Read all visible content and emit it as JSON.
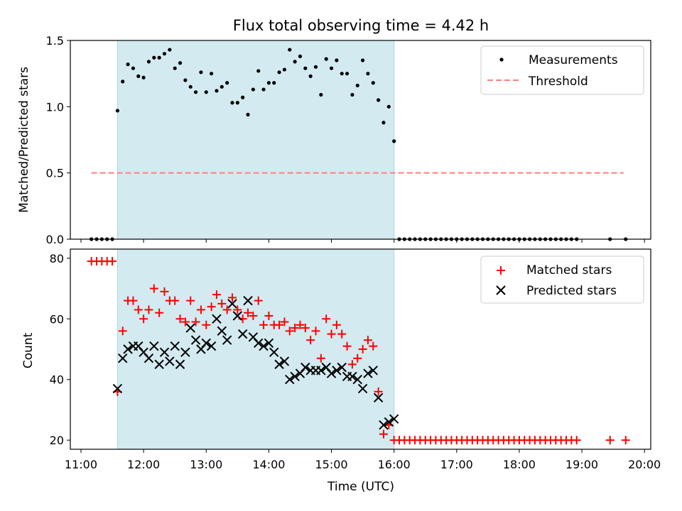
{
  "chart_data": [
    {
      "type": "scatter",
      "title": "Flux total observing time = 4.42 h",
      "ylabel": "Matched/Predicted stars",
      "xlim_hours": [
        10.83,
        20.1
      ],
      "ylim": [
        0,
        1.5
      ],
      "yticks": [
        "0.0",
        "0.5",
        "1.0",
        "1.5"
      ],
      "shaded_interval": [
        "11:35",
        "16:00"
      ],
      "shade_color": "#d3eaf0",
      "legend": {
        "placement": "top-right",
        "entries": [
          "Measurements",
          "Threshold"
        ]
      },
      "threshold": {
        "name": "Threshold",
        "value": 0.5,
        "x_range": [
          "11:10",
          "19:40"
        ],
        "color": "#ff7f7f",
        "style": "dashed"
      },
      "series": [
        {
          "name": "Measurements",
          "marker": "dot",
          "color": "#000000",
          "x": [
            "11:10",
            "11:15",
            "11:20",
            "11:25",
            "11:30",
            "11:35",
            "11:40",
            "11:45",
            "11:50",
            "11:55",
            "12:00",
            "12:05",
            "12:10",
            "12:15",
            "12:20",
            "12:25",
            "12:30",
            "12:35",
            "12:40",
            "12:45",
            "12:50",
            "12:55",
            "13:00",
            "13:05",
            "13:10",
            "13:15",
            "13:20",
            "13:25",
            "13:30",
            "13:35",
            "13:40",
            "13:45",
            "13:50",
            "13:55",
            "14:00",
            "14:05",
            "14:10",
            "14:15",
            "14:20",
            "14:25",
            "14:30",
            "14:35",
            "14:40",
            "14:45",
            "14:50",
            "14:55",
            "15:00",
            "15:05",
            "15:10",
            "15:15",
            "15:20",
            "15:25",
            "15:30",
            "15:35",
            "15:40",
            "15:45",
            "15:50",
            "15:55",
            "16:00",
            "16:05",
            "16:10",
            "16:15",
            "16:20",
            "16:25",
            "16:30",
            "16:35",
            "16:40",
            "16:45",
            "16:50",
            "16:55",
            "17:00",
            "17:05",
            "17:10",
            "17:15",
            "17:20",
            "17:25",
            "17:30",
            "17:35",
            "17:40",
            "17:45",
            "17:50",
            "17:55",
            "18:00",
            "18:05",
            "18:10",
            "18:15",
            "18:20",
            "18:25",
            "18:30",
            "18:35",
            "18:40",
            "18:45",
            "18:50",
            "18:55",
            "19:27",
            "19:42"
          ],
          "y": [
            0,
            0,
            0,
            0,
            0,
            0.97,
            1.19,
            1.32,
            1.29,
            1.23,
            1.22,
            1.34,
            1.37,
            1.37,
            1.4,
            1.43,
            1.29,
            1.33,
            1.2,
            1.15,
            1.11,
            1.26,
            1.11,
            1.25,
            1.12,
            1.15,
            1.18,
            1.03,
            1.03,
            1.07,
            0.94,
            1.13,
            1.27,
            1.13,
            1.18,
            1.18,
            1.26,
            1.28,
            1.43,
            1.34,
            1.38,
            1.29,
            1.23,
            1.3,
            1.09,
            1.36,
            1.29,
            1.35,
            1.25,
            1.25,
            1.09,
            1.16,
            1.35,
            1.25,
            1.18,
            1.05,
            0.88,
            1.0,
            0.74,
            0,
            0,
            0,
            0,
            0,
            0,
            0,
            0,
            0,
            0,
            0,
            0,
            0,
            0,
            0,
            0,
            0,
            0,
            0,
            0,
            0,
            0,
            0,
            0,
            0,
            0,
            0,
            0,
            0,
            0,
            0,
            0,
            0,
            0,
            0,
            0,
            0
          ]
        }
      ]
    },
    {
      "type": "scatter",
      "xlabel": "Time (UTC)",
      "ylabel": "Count",
      "xlim_hours": [
        10.83,
        20.1
      ],
      "ylim": [
        17,
        83
      ],
      "xticks": [
        "11:00",
        "12:00",
        "13:00",
        "14:00",
        "15:00",
        "16:00",
        "17:00",
        "18:00",
        "19:00",
        "20:00"
      ],
      "yticks": [
        "20",
        "40",
        "60",
        "80"
      ],
      "shaded_interval": [
        "11:35",
        "16:00"
      ],
      "shade_color": "#d3eaf0",
      "legend": {
        "placement": "top-right",
        "entries": [
          "Matched stars",
          "Predicted stars"
        ]
      },
      "series": [
        {
          "name": "Matched stars",
          "marker": "plus",
          "color": "#ff0000",
          "x": [
            "11:10",
            "11:15",
            "11:20",
            "11:25",
            "11:30",
            "11:35",
            "11:40",
            "11:45",
            "11:50",
            "11:55",
            "12:00",
            "12:05",
            "12:10",
            "12:15",
            "12:20",
            "12:25",
            "12:30",
            "12:35",
            "12:40",
            "12:45",
            "12:50",
            "12:55",
            "13:00",
            "13:05",
            "13:10",
            "13:15",
            "13:20",
            "13:25",
            "13:30",
            "13:35",
            "13:40",
            "13:45",
            "13:50",
            "13:55",
            "14:00",
            "14:05",
            "14:10",
            "14:15",
            "14:20",
            "14:25",
            "14:30",
            "14:35",
            "14:40",
            "14:45",
            "14:50",
            "14:55",
            "15:00",
            "15:05",
            "15:10",
            "15:15",
            "15:20",
            "15:25",
            "15:30",
            "15:35",
            "15:40",
            "15:45",
            "15:50",
            "15:55",
            "16:00",
            "16:05",
            "16:10",
            "16:15",
            "16:20",
            "16:25",
            "16:30",
            "16:35",
            "16:40",
            "16:45",
            "16:50",
            "16:55",
            "17:00",
            "17:05",
            "17:10",
            "17:15",
            "17:20",
            "17:25",
            "17:30",
            "17:35",
            "17:40",
            "17:45",
            "17:50",
            "17:55",
            "18:00",
            "18:05",
            "18:10",
            "18:15",
            "18:20",
            "18:25",
            "18:30",
            "18:35",
            "18:40",
            "18:45",
            "18:50",
            "18:55",
            "19:27",
            "19:42"
          ],
          "y": [
            79,
            79,
            79,
            79,
            79,
            36,
            56,
            66,
            66,
            63,
            60,
            63,
            70,
            62,
            69,
            66,
            66,
            60,
            59,
            66,
            59,
            63,
            58,
            64,
            68,
            65,
            63,
            67,
            63,
            60,
            62,
            61,
            66,
            58,
            61,
            58,
            58,
            59,
            56,
            57,
            58,
            57,
            53,
            56,
            47,
            60,
            55,
            58,
            55,
            51,
            45,
            47,
            50,
            53,
            51,
            36,
            22,
            25,
            20,
            20,
            20,
            20,
            20,
            20,
            20,
            20,
            20,
            20,
            20,
            20,
            20,
            20,
            20,
            20,
            20,
            20,
            20,
            20,
            20,
            20,
            20,
            20,
            20,
            20,
            20,
            20,
            20,
            20,
            20,
            20,
            20,
            20,
            20,
            20,
            20,
            20
          ]
        },
        {
          "name": "Predicted stars",
          "marker": "x",
          "color": "#000000",
          "x": [
            "11:35",
            "11:40",
            "11:45",
            "11:50",
            "11:55",
            "12:00",
            "12:05",
            "12:10",
            "12:15",
            "12:20",
            "12:25",
            "12:30",
            "12:35",
            "12:40",
            "12:45",
            "12:50",
            "12:55",
            "13:00",
            "13:05",
            "13:10",
            "13:15",
            "13:20",
            "13:25",
            "13:30",
            "13:35",
            "13:40",
            "13:45",
            "13:50",
            "13:55",
            "14:00",
            "14:05",
            "14:10",
            "14:15",
            "14:20",
            "14:25",
            "14:30",
            "14:35",
            "14:40",
            "14:45",
            "14:50",
            "14:55",
            "15:00",
            "15:05",
            "15:10",
            "15:15",
            "15:20",
            "15:25",
            "15:30",
            "15:35",
            "15:40",
            "15:45",
            "15:50",
            "15:55",
            "16:00"
          ],
          "y": [
            37,
            47,
            50,
            51,
            51,
            49,
            47,
            51,
            45,
            49,
            46,
            51,
            45,
            49,
            57,
            53,
            50,
            52,
            51,
            60,
            56,
            53,
            65,
            61,
            55,
            66,
            54,
            52,
            51,
            52,
            49,
            45,
            46,
            40,
            41,
            42,
            44,
            43,
            43,
            43,
            44,
            42,
            43,
            44,
            41,
            41,
            40,
            37,
            42,
            43,
            34,
            25,
            26,
            27
          ]
        }
      ]
    }
  ]
}
